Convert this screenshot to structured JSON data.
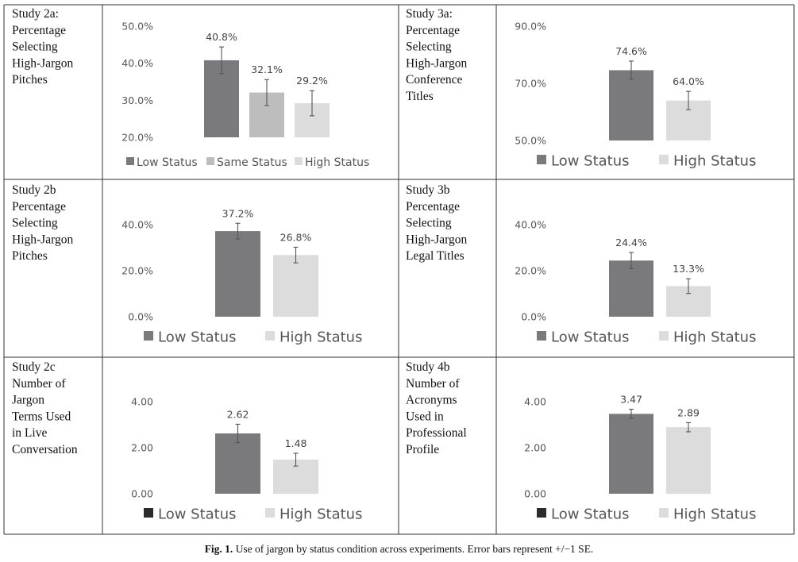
{
  "colors": {
    "low": "#7a7a7c",
    "same": "#bdbdbd",
    "high": "#dcdcdc",
    "low_legend_dark": "#2b2b2b"
  },
  "caption": {
    "prefix": "Fig. 1.",
    "text": "Use of jargon by status condition across experiments. Error bars represent +/−1 SE."
  },
  "chart_data": [
    {
      "id": "study-2a",
      "type": "bar",
      "label_lines": [
        "Study 2a:",
        "Percentage",
        "Selecting",
        "High-Jargon",
        "Pitches"
      ],
      "categories": [
        "Low Status",
        "Same Status",
        "High Status"
      ],
      "values": [
        40.8,
        32.1,
        29.2
      ],
      "value_labels": [
        "40.8%",
        "32.1%",
        "29.2%"
      ],
      "errors": [
        3.6,
        3.5,
        3.4
      ],
      "ylim": [
        20,
        50
      ],
      "ticks": [
        20,
        30,
        40,
        50
      ],
      "tick_labels": [
        "20.0%",
        "30.0%",
        "40.0%",
        "50.0%"
      ],
      "legend": [
        "Low Status",
        "Same Status",
        "High Status"
      ],
      "legend_colors": [
        "low",
        "same",
        "high"
      ]
    },
    {
      "id": "study-3a",
      "type": "bar",
      "label_lines": [
        "Study 3a:",
        "Percentage",
        "Selecting",
        "High-Jargon",
        "Conference",
        "Titles"
      ],
      "categories": [
        "Low Status",
        "High Status"
      ],
      "values": [
        74.6,
        64.0
      ],
      "value_labels": [
        "74.6%",
        "64.0%"
      ],
      "errors": [
        3.2,
        3.2
      ],
      "ylim": [
        50,
        90
      ],
      "ticks": [
        50,
        70,
        90
      ],
      "tick_labels": [
        "50.0%",
        "70.0%",
        "90.0%"
      ],
      "legend": [
        "Low Status",
        "High Status"
      ],
      "legend_colors": [
        "low",
        "high"
      ]
    },
    {
      "id": "study-2b",
      "type": "bar",
      "label_lines": [
        "Study 2b",
        "Percentage",
        "Selecting",
        "High-Jargon",
        "Pitches"
      ],
      "categories": [
        "Low Status",
        "High Status"
      ],
      "values": [
        37.2,
        26.8
      ],
      "value_labels": [
        "37.2%",
        "26.8%"
      ],
      "errors": [
        3.4,
        3.4
      ],
      "ylim": [
        0,
        40
      ],
      "ticks": [
        0,
        20,
        40
      ],
      "tick_labels": [
        "0.0%",
        "20.0%",
        "40.0%"
      ],
      "legend": [
        "Low Status",
        "High Status"
      ],
      "legend_colors": [
        "low",
        "high"
      ]
    },
    {
      "id": "study-3b",
      "type": "bar",
      "label_lines": [
        "Study 3b",
        "Percentage",
        "Selecting",
        "High-Jargon",
        "Legal Titles"
      ],
      "categories": [
        "Low Status",
        "High Status"
      ],
      "values": [
        24.4,
        13.3
      ],
      "value_labels": [
        "24.4%",
        "13.3%"
      ],
      "errors": [
        3.5,
        3.2
      ],
      "ylim": [
        0,
        40
      ],
      "ticks": [
        0,
        20,
        40
      ],
      "tick_labels": [
        "0.0%",
        "20.0%",
        "40.0%"
      ],
      "legend": [
        "Low Status",
        "High Status"
      ],
      "legend_colors": [
        "low",
        "high"
      ]
    },
    {
      "id": "study-2c",
      "type": "bar",
      "label_lines": [
        "Study 2c",
        "Number of",
        "Jargon",
        "Terms Used",
        "in Live",
        "Conversation"
      ],
      "categories": [
        "Low Status",
        "High Status"
      ],
      "values": [
        2.62,
        1.48
      ],
      "value_labels": [
        "2.62",
        "1.48"
      ],
      "errors": [
        0.4,
        0.28
      ],
      "ylim": [
        0,
        4
      ],
      "ticks": [
        0,
        2,
        4
      ],
      "tick_labels": [
        "0.00",
        "2.00",
        "4.00"
      ],
      "legend": [
        "Low Status",
        "High Status"
      ],
      "legend_colors": [
        "low_legend_dark",
        "high"
      ]
    },
    {
      "id": "study-4b",
      "type": "bar",
      "label_lines": [
        "Study 4b",
        "Number of",
        "Acronyms",
        "Used in",
        "Professional",
        "Profile"
      ],
      "categories": [
        "Low Status",
        "High Status"
      ],
      "values": [
        3.47,
        2.89
      ],
      "value_labels": [
        "3.47",
        "2.89"
      ],
      "errors": [
        0.2,
        0.2
      ],
      "ylim": [
        0,
        4
      ],
      "ticks": [
        0,
        2,
        4
      ],
      "tick_labels": [
        "0.00",
        "2.00",
        "4.00"
      ],
      "legend": [
        "Low Status",
        "High Status"
      ],
      "legend_colors": [
        "low_legend_dark",
        "high"
      ]
    }
  ]
}
